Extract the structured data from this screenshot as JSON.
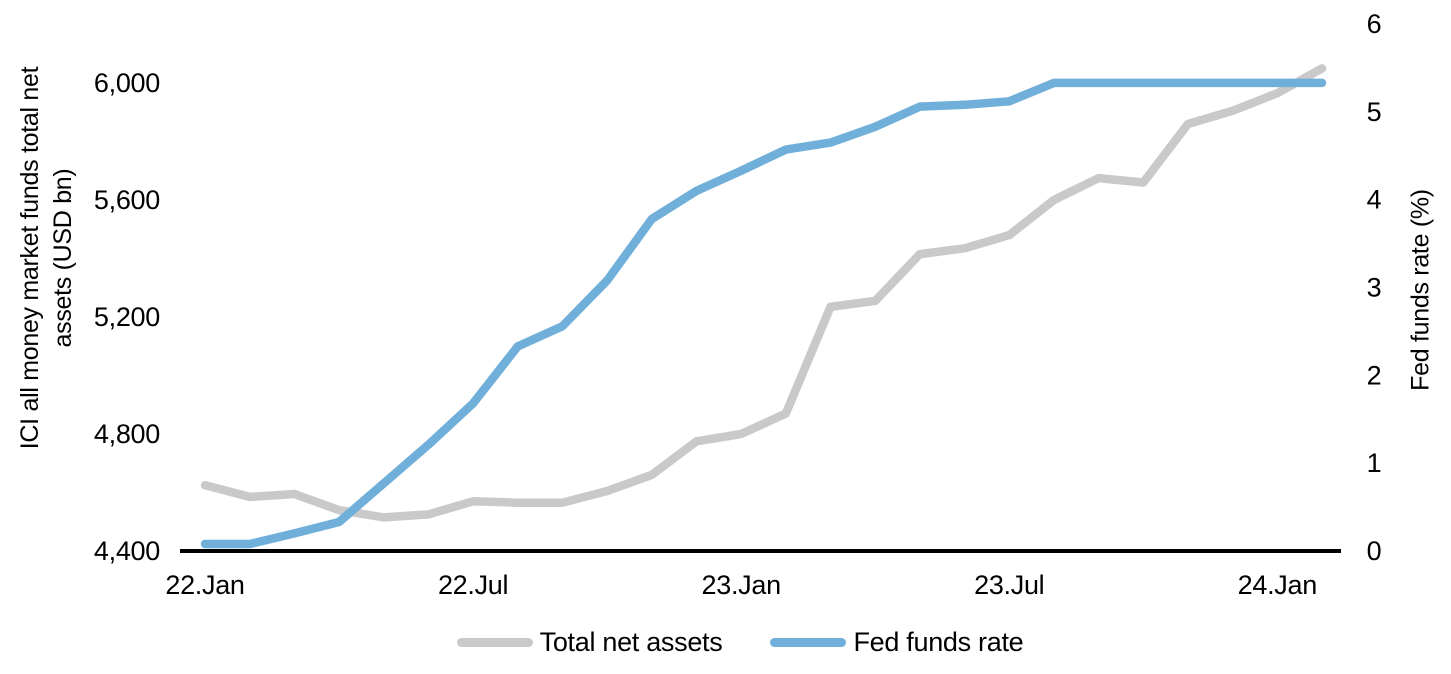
{
  "chart_data": {
    "type": "line",
    "title": "",
    "x": [
      "2022-01",
      "2022-02",
      "2022-03",
      "2022-04",
      "2022-05",
      "2022-06",
      "2022-07",
      "2022-08",
      "2022-09",
      "2022-10",
      "2022-11",
      "2022-12",
      "2023-01",
      "2023-02",
      "2023-03",
      "2023-04",
      "2023-05",
      "2023-06",
      "2023-07",
      "2023-08",
      "2023-09",
      "2023-10",
      "2023-11",
      "2023-12",
      "2024-01",
      "2024-02"
    ],
    "x_tick_indices": [
      0,
      6,
      12,
      18,
      24
    ],
    "x_tick_labels": [
      "22.Jan",
      "22.Jul",
      "23.Jan",
      "23.Jul",
      "24.Jan"
    ],
    "series": [
      {
        "name": "Total net assets",
        "axis": "left",
        "color": "#C9C9C9",
        "values": [
          4625,
          4585,
          4595,
          4540,
          4515,
          4525,
          4570,
          4565,
          4565,
          4605,
          4660,
          4775,
          4800,
          4870,
          5235,
          5255,
          5415,
          5435,
          5480,
          5600,
          5675,
          5660,
          5860,
          5905,
          5965,
          6050
        ]
      },
      {
        "name": "Fed funds rate",
        "axis": "right",
        "color": "#6FAFDA",
        "values": [
          0.08,
          0.08,
          0.2,
          0.33,
          0.77,
          1.21,
          1.68,
          2.33,
          2.56,
          3.08,
          3.78,
          4.1,
          4.33,
          4.57,
          4.65,
          4.83,
          5.06,
          5.08,
          5.12,
          5.33,
          5.33,
          5.33,
          5.33,
          5.33,
          5.33,
          5.33
        ]
      }
    ],
    "y_left": {
      "title_lines": [
        "ICI all money market funds total net",
        "assets (USD bn)"
      ],
      "min": 4400,
      "max": 6000,
      "tick_values": [
        4400,
        4800,
        5200,
        5600,
        6000
      ],
      "tick_labels": [
        "4,400",
        "4,800",
        "5,200",
        "5,600",
        "6,000"
      ]
    },
    "y_right": {
      "title": "Fed funds rate (%)",
      "min": 0,
      "max": 6,
      "tick_values": [
        0,
        1,
        2,
        3,
        4,
        5,
        6
      ],
      "tick_labels": [
        "0",
        "1",
        "2",
        "3",
        "4",
        "5",
        "6"
      ]
    },
    "legend": {
      "position": "bottom"
    },
    "grid": false,
    "axis_line_color": "#000000",
    "background_color": "#FFFFFF"
  }
}
